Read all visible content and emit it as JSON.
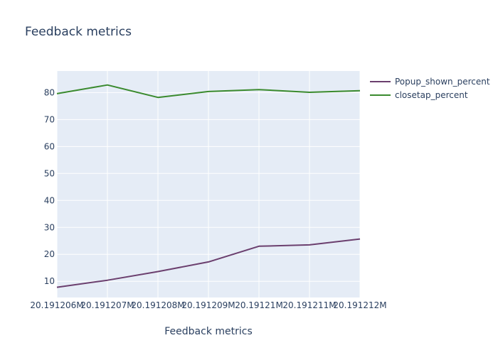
{
  "chart_data": {
    "type": "line",
    "title": "Feedback metrics",
    "xlabel": "Feedback metrics",
    "ylabel": "",
    "categories": [
      "20.191206M",
      "20.191207M",
      "20.191208M",
      "20.191209M",
      "20.19121M",
      "20.191211M",
      "20.191212M"
    ],
    "yticks": [
      10,
      20,
      30,
      40,
      50,
      60,
      70,
      80
    ],
    "ylim": [
      4,
      88
    ],
    "grid": true,
    "legend_position": "top-right",
    "series": [
      {
        "name": "Popup_shown_percent",
        "color": "#6b3f6e",
        "values": [
          7.8,
          10.4,
          13.6,
          17.2,
          23.0,
          23.5,
          25.7
        ]
      },
      {
        "name": "closetap_percent",
        "color": "#3a8a2e",
        "values": [
          79.6,
          82.8,
          78.2,
          80.4,
          81.1,
          80.1,
          80.7
        ]
      }
    ]
  }
}
